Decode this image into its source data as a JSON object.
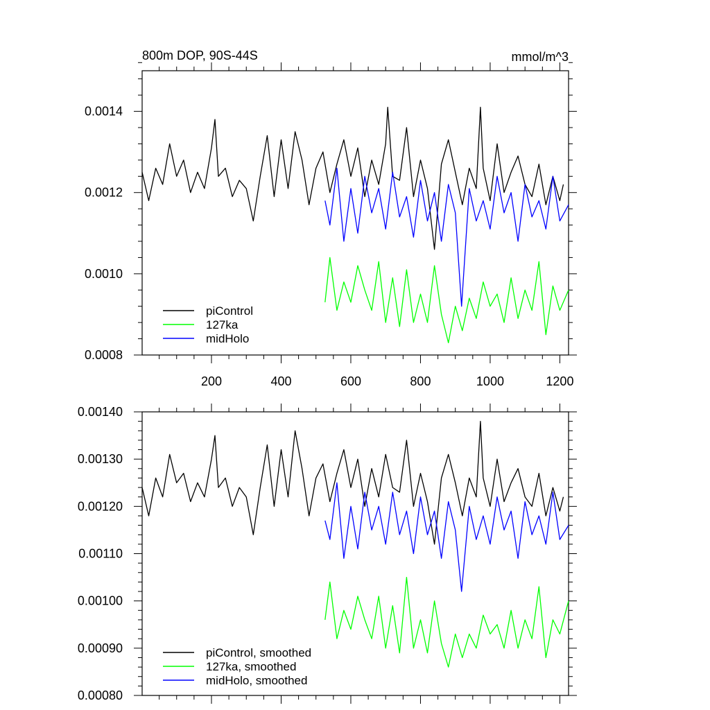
{
  "chart_data": [
    {
      "type": "line",
      "title_left": "800m DOP, 90S-44S",
      "title_right": "mmol/m^3",
      "xlim": [
        1,
        1225
      ],
      "ylim": [
        0.0008,
        0.0015
      ],
      "xticks": [
        200,
        400,
        600,
        800,
        1000,
        1200
      ],
      "xtick_labels": [
        "200",
        "400",
        "600",
        "800",
        "1000",
        "1200"
      ],
      "yticks": [
        0.0008,
        0.001,
        0.0012,
        0.0014
      ],
      "ytick_labels": [
        "0.0008",
        "0.0010",
        "0.0012",
        "0.0014"
      ],
      "legend_position": "bottom-left",
      "series": [
        {
          "name": "piControl",
          "color": "#000000",
          "x": [
            1,
            20,
            40,
            60,
            80,
            100,
            120,
            140,
            160,
            180,
            200,
            210,
            220,
            240,
            260,
            280,
            300,
            320,
            340,
            360,
            380,
            400,
            420,
            440,
            460,
            480,
            500,
            520,
            540,
            560,
            580,
            600,
            620,
            640,
            660,
            680,
            700,
            706,
            720,
            740,
            760,
            780,
            800,
            820,
            840,
            860,
            880,
            900,
            920,
            940,
            960,
            972,
            980,
            1000,
            1020,
            1040,
            1060,
            1080,
            1100,
            1120,
            1140,
            1160,
            1180,
            1200,
            1210
          ],
          "y": [
            0.00125,
            0.00118,
            0.00126,
            0.00122,
            0.00132,
            0.00124,
            0.00128,
            0.0012,
            0.00125,
            0.00121,
            0.00131,
            0.00138,
            0.00124,
            0.00126,
            0.00119,
            0.00123,
            0.00121,
            0.00113,
            0.00124,
            0.00134,
            0.00119,
            0.00133,
            0.00121,
            0.00135,
            0.00128,
            0.00117,
            0.00126,
            0.0013,
            0.0012,
            0.00127,
            0.00133,
            0.00124,
            0.00131,
            0.00119,
            0.00128,
            0.00122,
            0.00132,
            0.00141,
            0.00124,
            0.00123,
            0.00136,
            0.00119,
            0.00128,
            0.00121,
            0.00106,
            0.00127,
            0.00133,
            0.00125,
            0.00117,
            0.00126,
            0.00121,
            0.00141,
            0.00126,
            0.00118,
            0.00132,
            0.0012,
            0.00125,
            0.00129,
            0.00122,
            0.00119,
            0.00127,
            0.00117,
            0.00124,
            0.00118,
            0.00122
          ]
        },
        {
          "name": "127ka",
          "color": "#00ff00",
          "x": [
            526,
            540,
            560,
            580,
            600,
            620,
            640,
            660,
            680,
            700,
            720,
            740,
            760,
            780,
            800,
            820,
            840,
            860,
            880,
            900,
            920,
            940,
            960,
            980,
            1000,
            1020,
            1040,
            1060,
            1080,
            1100,
            1120,
            1140,
            1160,
            1180,
            1200,
            1225
          ],
          "y": [
            0.00093,
            0.00104,
            0.00091,
            0.00098,
            0.00093,
            0.00102,
            0.00096,
            0.00091,
            0.00103,
            0.00088,
            0.00099,
            0.00087,
            0.00101,
            0.00088,
            0.00095,
            0.00088,
            0.00102,
            0.0009,
            0.00083,
            0.00092,
            0.00086,
            0.00094,
            0.00089,
            0.00098,
            0.00092,
            0.00095,
            0.00088,
            0.00099,
            0.00089,
            0.00096,
            0.00091,
            0.00103,
            0.00085,
            0.00097,
            0.00091,
            0.00096
          ]
        },
        {
          "name": "midHolo",
          "color": "#0000ff",
          "x": [
            526,
            540,
            560,
            580,
            600,
            620,
            640,
            660,
            680,
            700,
            720,
            740,
            760,
            780,
            800,
            820,
            840,
            860,
            880,
            900,
            918,
            940,
            960,
            980,
            1000,
            1020,
            1040,
            1060,
            1080,
            1100,
            1120,
            1140,
            1160,
            1180,
            1200,
            1225
          ],
          "y": [
            0.00118,
            0.00112,
            0.00126,
            0.00108,
            0.00121,
            0.0011,
            0.00124,
            0.00115,
            0.00121,
            0.00111,
            0.00125,
            0.00114,
            0.00119,
            0.00109,
            0.00123,
            0.00113,
            0.0012,
            0.00108,
            0.00122,
            0.00115,
            0.00092,
            0.00121,
            0.00113,
            0.00118,
            0.00111,
            0.00124,
            0.00115,
            0.0012,
            0.00108,
            0.00122,
            0.00114,
            0.00118,
            0.00111,
            0.00124,
            0.00113,
            0.00117
          ]
        }
      ]
    },
    {
      "type": "line",
      "xlim": [
        1,
        1225
      ],
      "ylim": [
        0.0008,
        0.0014
      ],
      "xticks": [
        200,
        400,
        600,
        800,
        1000,
        1200
      ],
      "yticks": [
        0.0008,
        0.0009,
        0.001,
        0.0011,
        0.0012,
        0.0013,
        0.0014
      ],
      "ytick_labels": [
        "0.00080",
        "0.00090",
        "0.00100",
        "0.00110",
        "0.00120",
        "0.00130",
        "0.00140"
      ],
      "legend_position": "bottom-left",
      "series": [
        {
          "name": "piControl, smoothed",
          "color": "#000000",
          "x": [
            1,
            20,
            40,
            60,
            80,
            100,
            120,
            140,
            160,
            180,
            200,
            210,
            220,
            240,
            260,
            280,
            300,
            320,
            340,
            360,
            380,
            400,
            420,
            440,
            460,
            480,
            500,
            520,
            540,
            560,
            580,
            600,
            620,
            640,
            660,
            680,
            700,
            720,
            740,
            760,
            780,
            800,
            820,
            840,
            860,
            880,
            900,
            920,
            940,
            960,
            972,
            980,
            1000,
            1020,
            1040,
            1060,
            1080,
            1100,
            1120,
            1140,
            1160,
            1180,
            1200,
            1210
          ],
          "y": [
            0.00124,
            0.00118,
            0.00126,
            0.00122,
            0.00131,
            0.00125,
            0.00127,
            0.00121,
            0.00125,
            0.00122,
            0.0013,
            0.00135,
            0.00124,
            0.00126,
            0.0012,
            0.00124,
            0.00122,
            0.00114,
            0.00124,
            0.00133,
            0.0012,
            0.00132,
            0.00122,
            0.00136,
            0.00128,
            0.00118,
            0.00126,
            0.00129,
            0.00121,
            0.00127,
            0.00132,
            0.00124,
            0.0013,
            0.0012,
            0.00128,
            0.00122,
            0.00131,
            0.00124,
            0.00123,
            0.00134,
            0.0012,
            0.00127,
            0.00121,
            0.00112,
            0.00126,
            0.00131,
            0.00125,
            0.00118,
            0.00126,
            0.00122,
            0.00138,
            0.00126,
            0.0012,
            0.0013,
            0.00121,
            0.00125,
            0.00128,
            0.00122,
            0.0012,
            0.00127,
            0.00118,
            0.00124,
            0.00119,
            0.00122
          ]
        },
        {
          "name": "127ka, smoothed",
          "color": "#00ff00",
          "x": [
            526,
            540,
            560,
            580,
            600,
            620,
            640,
            660,
            680,
            700,
            720,
            740,
            760,
            780,
            800,
            820,
            840,
            860,
            880,
            900,
            920,
            940,
            960,
            980,
            1000,
            1020,
            1040,
            1060,
            1080,
            1100,
            1120,
            1140,
            1160,
            1180,
            1200,
            1225
          ],
          "y": [
            0.00096,
            0.00104,
            0.00092,
            0.00098,
            0.00094,
            0.00101,
            0.00096,
            0.00092,
            0.00101,
            0.0009,
            0.00099,
            0.00089,
            0.00105,
            0.0009,
            0.00096,
            0.00089,
            0.001,
            0.00091,
            0.00086,
            0.00093,
            0.00088,
            0.00093,
            0.0009,
            0.00097,
            0.00093,
            0.00095,
            0.0009,
            0.00098,
            0.0009,
            0.00096,
            0.00092,
            0.00103,
            0.00088,
            0.00096,
            0.00093,
            0.001
          ]
        },
        {
          "name": "midHolo, smoothed",
          "color": "#0000ff",
          "x": [
            526,
            540,
            560,
            580,
            600,
            620,
            640,
            660,
            680,
            700,
            720,
            740,
            760,
            780,
            800,
            820,
            840,
            860,
            880,
            900,
            918,
            940,
            960,
            980,
            1000,
            1020,
            1040,
            1060,
            1080,
            1100,
            1120,
            1140,
            1160,
            1180,
            1200,
            1225
          ],
          "y": [
            0.00117,
            0.00113,
            0.00125,
            0.00109,
            0.0012,
            0.00111,
            0.00123,
            0.00115,
            0.0012,
            0.00112,
            0.00123,
            0.00114,
            0.00119,
            0.0011,
            0.00122,
            0.00114,
            0.00119,
            0.00109,
            0.00121,
            0.00115,
            0.00102,
            0.0012,
            0.00113,
            0.00118,
            0.00112,
            0.00122,
            0.00115,
            0.00119,
            0.00109,
            0.00121,
            0.00114,
            0.00118,
            0.00112,
            0.00123,
            0.00113,
            0.00116
          ]
        }
      ]
    }
  ]
}
